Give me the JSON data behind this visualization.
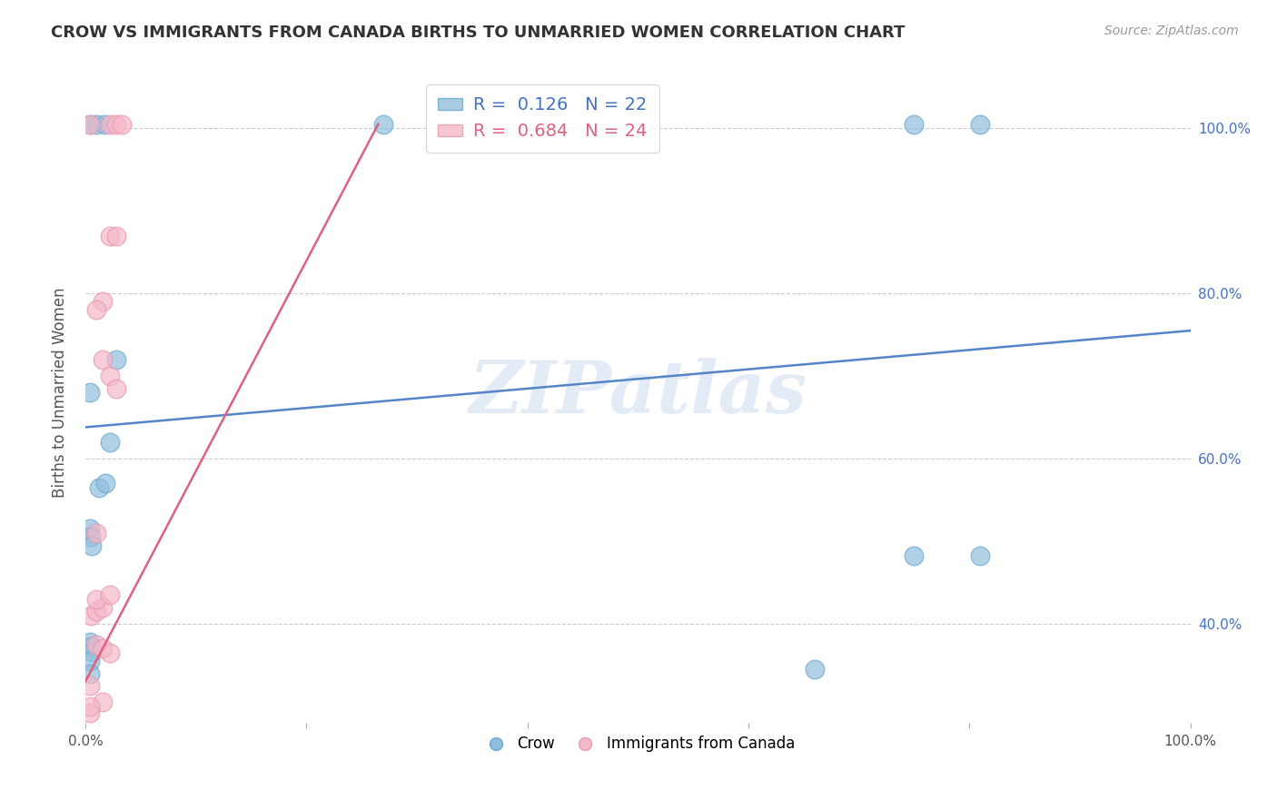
{
  "title": "CROW VS IMMIGRANTS FROM CANADA BIRTHS TO UNMARRIED WOMEN CORRELATION CHART",
  "source": "Source: ZipAtlas.com",
  "ylabel": "Births to Unmarried Women",
  "watermark": "ZIPatlas",
  "crow_color": "#90bedd",
  "crow_edge_color": "#6aa8d0",
  "immigrant_color": "#f5b8c8",
  "immigrant_edge_color": "#e898b0",
  "crow_line_color": "#5585c8",
  "immigrant_line_color": "#e06080",
  "crow_R": 0.126,
  "crow_N": 22,
  "immigrant_R": 0.684,
  "immigrant_N": 24,
  "xlim": [
    0.0,
    1.0
  ],
  "ylim": [
    0.28,
    1.08
  ],
  "ytick_vals": [
    0.4,
    0.6,
    0.8,
    1.0
  ],
  "ytick_labels": [
    "40.0%",
    "60.0%",
    "80.0%",
    "100.0%"
  ],
  "crow_points": [
    [
      0.004,
      1.005
    ],
    [
      0.01,
      1.005
    ],
    [
      0.017,
      1.005
    ],
    [
      0.27,
      1.005
    ],
    [
      0.75,
      1.005
    ],
    [
      0.81,
      1.005
    ],
    [
      0.004,
      0.68
    ],
    [
      0.022,
      0.62
    ],
    [
      0.028,
      0.72
    ],
    [
      0.012,
      0.565
    ],
    [
      0.018,
      0.57
    ],
    [
      0.004,
      0.515
    ],
    [
      0.005,
      0.505
    ],
    [
      0.006,
      0.495
    ],
    [
      0.75,
      0.482
    ],
    [
      0.81,
      0.482
    ],
    [
      0.66,
      0.345
    ],
    [
      0.004,
      0.378
    ],
    [
      0.005,
      0.372
    ],
    [
      0.006,
      0.366
    ],
    [
      0.004,
      0.355
    ],
    [
      0.004,
      0.34
    ]
  ],
  "immigrant_points": [
    [
      0.004,
      1.005
    ],
    [
      0.022,
      1.005
    ],
    [
      0.028,
      1.005
    ],
    [
      0.033,
      1.005
    ],
    [
      0.016,
      0.79
    ],
    [
      0.016,
      0.72
    ],
    [
      0.022,
      0.7
    ],
    [
      0.022,
      0.87
    ],
    [
      0.028,
      0.87
    ],
    [
      0.01,
      0.78
    ],
    [
      0.028,
      0.685
    ],
    [
      0.01,
      0.51
    ],
    [
      0.005,
      0.41
    ],
    [
      0.01,
      0.415
    ],
    [
      0.016,
      0.42
    ],
    [
      0.01,
      0.43
    ],
    [
      0.022,
      0.435
    ],
    [
      0.01,
      0.375
    ],
    [
      0.016,
      0.37
    ],
    [
      0.022,
      0.365
    ],
    [
      0.016,
      0.305
    ],
    [
      0.004,
      0.325
    ],
    [
      0.004,
      0.292
    ],
    [
      0.004,
      0.3
    ]
  ],
  "crow_line_x": [
    0.0,
    1.0
  ],
  "crow_line_y": [
    0.638,
    0.755
  ],
  "immigrant_line_x": [
    0.0,
    0.265
  ],
  "immigrant_line_y": [
    0.33,
    1.005
  ]
}
